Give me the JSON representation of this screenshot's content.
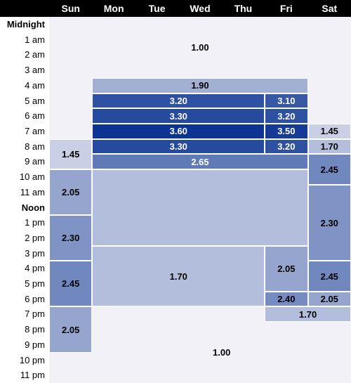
{
  "chart_data": {
    "type": "heatmap",
    "days": [
      "Sun",
      "Mon",
      "Tue",
      "Wed",
      "Thu",
      "Fri",
      "Sat"
    ],
    "hours": [
      "Midnight",
      "1 am",
      "2 am",
      "3 am",
      "4 am",
      "5 am",
      "6 am",
      "7 am",
      "8 am",
      "9 am",
      "10 am",
      "11 am",
      "Noon",
      "1 pm",
      "2 pm",
      "3 pm",
      "4 pm",
      "5 pm",
      "6 pm",
      "7 pm",
      "8 pm",
      "9 pm",
      "10 pm",
      "11 pm"
    ],
    "bold_hours": [
      "Midnight",
      "Noon"
    ],
    "value_range": [
      1.0,
      3.6
    ],
    "blocks": [
      {
        "day_start": 0,
        "day_end": 6,
        "hour_start": 0,
        "hour_end": 3,
        "value": 1.0
      },
      {
        "day_start": 0,
        "day_end": 0,
        "hour_start": 4,
        "hour_end": 7,
        "value": 1.0,
        "label": ""
      },
      {
        "day_start": 6,
        "day_end": 6,
        "hour_start": 4,
        "hour_end": 6,
        "value": 1.0,
        "label": ""
      },
      {
        "day_start": 1,
        "day_end": 5,
        "hour_start": 4,
        "hour_end": 4,
        "value": 1.9
      },
      {
        "day_start": 1,
        "day_end": 4,
        "hour_start": 5,
        "hour_end": 5,
        "value": 3.2
      },
      {
        "day_start": 5,
        "day_end": 5,
        "hour_start": 5,
        "hour_end": 5,
        "value": 3.1
      },
      {
        "day_start": 1,
        "day_end": 4,
        "hour_start": 6,
        "hour_end": 6,
        "value": 3.3
      },
      {
        "day_start": 5,
        "day_end": 5,
        "hour_start": 6,
        "hour_end": 6,
        "value": 3.2
      },
      {
        "day_start": 1,
        "day_end": 4,
        "hour_start": 7,
        "hour_end": 7,
        "value": 3.6
      },
      {
        "day_start": 5,
        "day_end": 5,
        "hour_start": 7,
        "hour_end": 7,
        "value": 3.5
      },
      {
        "day_start": 6,
        "day_end": 6,
        "hour_start": 7,
        "hour_end": 7,
        "value": 1.45
      },
      {
        "day_start": 0,
        "day_end": 0,
        "hour_start": 8,
        "hour_end": 9,
        "value": 1.45
      },
      {
        "day_start": 1,
        "day_end": 4,
        "hour_start": 8,
        "hour_end": 8,
        "value": 3.3
      },
      {
        "day_start": 5,
        "day_end": 5,
        "hour_start": 8,
        "hour_end": 8,
        "value": 3.2
      },
      {
        "day_start": 6,
        "day_end": 6,
        "hour_start": 8,
        "hour_end": 8,
        "value": 1.7
      },
      {
        "day_start": 1,
        "day_end": 5,
        "hour_start": 9,
        "hour_end": 9,
        "value": 2.65
      },
      {
        "day_start": 6,
        "day_end": 6,
        "hour_start": 9,
        "hour_end": 10,
        "value": 2.45
      },
      {
        "day_start": 0,
        "day_end": 0,
        "hour_start": 10,
        "hour_end": 12,
        "value": 2.05
      },
      {
        "day_start": 1,
        "day_end": 5,
        "hour_start": 10,
        "hour_end": 14,
        "value": 1.7,
        "label": ""
      },
      {
        "day_start": 1,
        "day_end": 4,
        "hour_start": 15,
        "hour_end": 18,
        "value": 1.7
      },
      {
        "day_start": 6,
        "day_end": 6,
        "hour_start": 11,
        "hour_end": 15,
        "value": 2.3
      },
      {
        "day_start": 0,
        "day_end": 0,
        "hour_start": 13,
        "hour_end": 15,
        "value": 2.3
      },
      {
        "day_start": 5,
        "day_end": 5,
        "hour_start": 15,
        "hour_end": 17,
        "value": 2.05
      },
      {
        "day_start": 6,
        "day_end": 6,
        "hour_start": 16,
        "hour_end": 17,
        "value": 2.45
      },
      {
        "day_start": 0,
        "day_end": 0,
        "hour_start": 16,
        "hour_end": 18,
        "value": 2.45
      },
      {
        "day_start": 5,
        "day_end": 5,
        "hour_start": 18,
        "hour_end": 18,
        "value": 2.4
      },
      {
        "day_start": 6,
        "day_end": 6,
        "hour_start": 18,
        "hour_end": 18,
        "value": 2.05
      },
      {
        "day_start": 5,
        "day_end": 6,
        "hour_start": 19,
        "hour_end": 19,
        "value": 1.7
      },
      {
        "day_start": 0,
        "day_end": 0,
        "hour_start": 19,
        "hour_end": 21,
        "value": 2.05
      },
      {
        "day_start": 1,
        "day_end": 6,
        "hour_start": 20,
        "hour_end": 23,
        "value": 1.0
      },
      {
        "day_start": 1,
        "day_end": 4,
        "hour_start": 19,
        "hour_end": 19,
        "value": 1.0,
        "label": ""
      },
      {
        "day_start": 0,
        "day_end": 0,
        "hour_start": 22,
        "hour_end": 23,
        "value": 1.0,
        "label": ""
      }
    ]
  }
}
